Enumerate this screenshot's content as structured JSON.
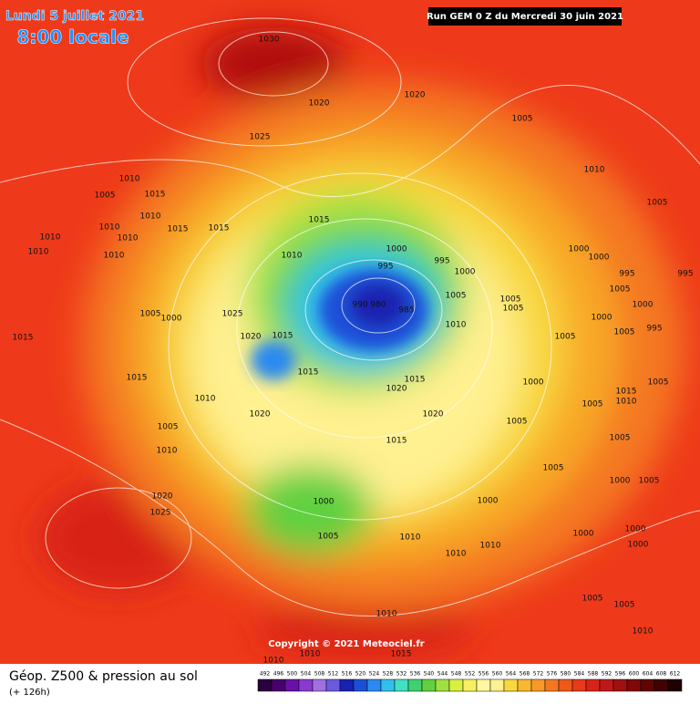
{
  "header": {
    "date": "Lundi 5 juillet 2021",
    "time": "8:00 locale",
    "run": "Run GEM 0 Z du Mercredi 30 juin 2021"
  },
  "copyright": "Copyright © 2021 Meteociel.fr",
  "footer": {
    "title": "Géop. Z500 & pression au sol",
    "lead": "(+ 126h)"
  },
  "isobars": [
    1030,
    1020,
    1020,
    1025,
    1005,
    1010,
    1010,
    1005,
    1015,
    1010,
    1010,
    1015,
    1015,
    1015,
    1010,
    1010,
    1010,
    1010,
    1010,
    1000,
    995,
    995,
    1000,
    1000,
    1000,
    1005,
    995,
    995,
    1005,
    1005,
    1005,
    1005,
    990,
    980,
    985,
    1005,
    1000,
    1025,
    1000,
    1000,
    995,
    1005,
    1010,
    1015,
    1020,
    1015,
    1005,
    1015,
    1015,
    1015,
    1020,
    1000,
    1005,
    1010,
    1015,
    1005,
    1010,
    1020,
    1020,
    1005,
    1005,
    1005,
    1010,
    1015,
    1005,
    1000,
    1005,
    1000,
    1000,
    1020,
    1025,
    1000,
    1000,
    1000,
    1005,
    1010,
    1010,
    1010,
    1005,
    1005,
    1010,
    1010,
    1010,
    1010,
    1015
  ],
  "scale": {
    "values": [
      492,
      496,
      500,
      504,
      508,
      512,
      516,
      520,
      524,
      528,
      532,
      536,
      540,
      544,
      548,
      552,
      556,
      560,
      564,
      568,
      572,
      576,
      580,
      584,
      588,
      592,
      596,
      600,
      604,
      608,
      612
    ],
    "colors": [
      "#2a0040",
      "#48006e",
      "#6a10a8",
      "#8a3ad0",
      "#a070e0",
      "#6a5ae0",
      "#1a20b0",
      "#1a50d8",
      "#2a8af0",
      "#30c0f0",
      "#40e0c0",
      "#40d070",
      "#60d040",
      "#a0e040",
      "#d8f040",
      "#f8f060",
      "#fff8a0",
      "#fff090",
      "#f8d840",
      "#f8b830",
      "#f89828",
      "#f47820",
      "#f05818",
      "#e83a18",
      "#d82418",
      "#c01818",
      "#a01010",
      "#800808",
      "#600404",
      "#400202",
      "#200000"
    ]
  }
}
